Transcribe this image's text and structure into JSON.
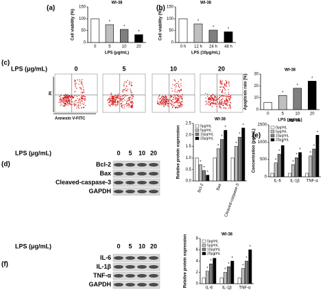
{
  "panels": [
    "(a)",
    "(b)",
    "(c)",
    "(d)",
    "(e)",
    "(f)"
  ],
  "flow": {
    "label": "LPS (μg/mL)",
    "headers": [
      "0",
      "5",
      "10",
      "20"
    ],
    "y_label": "PI",
    "x_label": "Annexin V-FITC"
  },
  "blot_d": {
    "label": "LPS (μg/mL)",
    "lanes": [
      "0",
      "5",
      "10",
      "20"
    ],
    "rows": [
      "Bcl-2",
      "Bax",
      "Cleaved-caspase-3",
      "GAPDH"
    ]
  },
  "blot_f": {
    "label": "LPS (μg/mL)",
    "lanes": [
      "0",
      "5",
      "10",
      "20"
    ],
    "rows": [
      "IL-6",
      "IL-1β",
      "TNF-α",
      "GAPDH"
    ]
  },
  "chart_data": [
    {
      "type": "bar",
      "title": "WI-38",
      "y_label": "Cell viability (%)",
      "x_label": "LPS (μg/mL)",
      "categories": [
        "0",
        "5",
        "10",
        "20"
      ],
      "values": [
        100,
        75,
        55,
        33
      ],
      "colors": [
        "#ffffff",
        "#bfbfbf",
        "#7f7f7f",
        "#000000"
      ],
      "significant": [
        false,
        true,
        true,
        true
      ],
      "significance_label": "*",
      "ylim": [
        0,
        150
      ],
      "yticks": [
        0,
        50,
        100,
        150
      ]
    },
    {
      "type": "bar",
      "title": "WI-38",
      "y_label": "Cell viability (%)",
      "x_label": "LPS (10μg/mL)",
      "categories": [
        "0 h",
        "12 h",
        "24 h",
        "48 h"
      ],
      "values": [
        100,
        78,
        52,
        45
      ],
      "colors": [
        "#ffffff",
        "#bfbfbf",
        "#7f7f7f",
        "#000000"
      ],
      "significant": [
        false,
        true,
        true,
        true
      ],
      "significance_label": "*",
      "ylim": [
        0,
        150
      ],
      "yticks": [
        0,
        50,
        100,
        150
      ]
    },
    {
      "type": "bar",
      "title": "WI-38",
      "y_label": "Apoptosis rate (%)",
      "x_label": "LPS (μg/mL)",
      "categories": [
        "0",
        "5",
        "10",
        "20"
      ],
      "values": [
        6,
        12,
        18,
        24
      ],
      "colors": [
        "#ffffff",
        "#bfbfbf",
        "#7f7f7f",
        "#000000"
      ],
      "significant": [
        false,
        true,
        true,
        true
      ],
      "significance_label": "*",
      "ylim": [
        0,
        30
      ],
      "yticks": [
        0,
        10,
        20,
        30
      ]
    },
    {
      "type": "grouped_bar",
      "title": "WI-38",
      "y_label": "Relative protein expression",
      "rotate_categories": true,
      "categories": [
        "Bcl-2",
        "Bax",
        "Cleaved-caspase-3"
      ],
      "significance_label": "*",
      "series": [
        {
          "name": "0μg/mL",
          "color": "#ffffff",
          "values": [
            1.0,
            1.0,
            1.0
          ],
          "significant": false
        },
        {
          "name": "5μg/mL",
          "color": "#bfbfbf",
          "values": [
            0.7,
            1.4,
            1.5
          ],
          "significant": true
        },
        {
          "name": "10μg/mL",
          "color": "#7f7f7f",
          "values": [
            0.45,
            1.8,
            1.9
          ],
          "significant": true
        },
        {
          "name": "20μg/mL",
          "color": "#000000",
          "values": [
            0.25,
            2.2,
            2.3
          ],
          "significant": true
        }
      ],
      "ylim": [
        0,
        2.5
      ],
      "yticks": [
        {
          "value": 0,
          "label": "0.0"
        },
        {
          "value": 0.5,
          "label": "0.5"
        },
        {
          "value": 1,
          "label": "1.0"
        },
        {
          "value": 1.5,
          "label": "1.5"
        },
        {
          "value": 2,
          "label": "2.0"
        },
        {
          "value": 2.5,
          "label": "2.5"
        }
      ]
    },
    {
      "type": "grouped_bar",
      "title": "WI-38",
      "y_label": "Concentration (pg/mL)",
      "categories": [
        "IL-6",
        "IL-1β",
        "TNF-α"
      ],
      "significance_label": "*",
      "series": [
        {
          "name": "0μg/mL",
          "color": "#ffffff",
          "values": [
            100,
            100,
            100
          ],
          "significant": false
        },
        {
          "name": "5μg/mL",
          "color": "#bfbfbf",
          "values": [
            400,
            350,
            600
          ],
          "significant": true
        },
        {
          "name": "10μg/mL",
          "color": "#7f7f7f",
          "values": [
            650,
            550,
            800
          ],
          "significant": true
        },
        {
          "name": "20μg/mL",
          "color": "#000000",
          "values": [
            900,
            700,
            1200
          ],
          "significant": true
        }
      ],
      "ylim": [
        0,
        1500
      ],
      "yticks": [
        0,
        500,
        1000,
        1500
      ]
    },
    {
      "type": "grouped_bar",
      "title": "WI-38",
      "y_label": "Relative protein expression",
      "categories": [
        "IL-6",
        "IL-1β",
        "TNF-α"
      ],
      "significance_label": "*",
      "series": [
        {
          "name": "0μg/mL",
          "color": "#ffffff",
          "values": [
            1,
            1,
            1
          ],
          "significant": false
        },
        {
          "name": "5μg/mL",
          "color": "#bfbfbf",
          "values": [
            2.2,
            2,
            2.7
          ],
          "significant": true
        },
        {
          "name": "10μg/mL",
          "color": "#7f7f7f",
          "values": [
            3.5,
            3,
            4
          ],
          "significant": true
        },
        {
          "name": "20μg/mL",
          "color": "#000000",
          "values": [
            4.5,
            4,
            6
          ],
          "significant": true
        }
      ],
      "ylim": [
        0,
        8
      ],
      "yticks": [
        0,
        2,
        4,
        6,
        8
      ]
    }
  ]
}
